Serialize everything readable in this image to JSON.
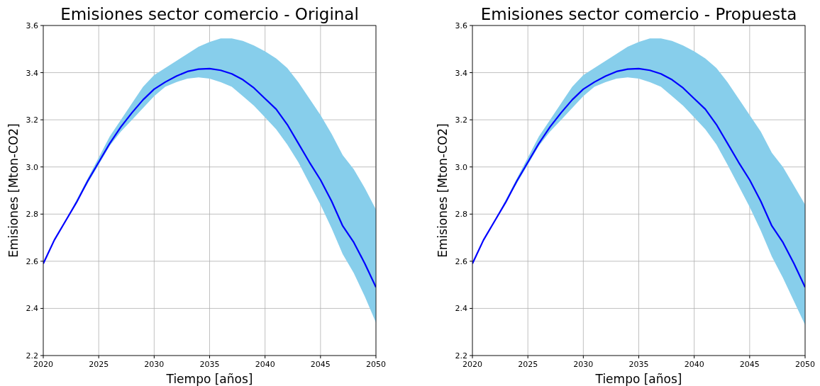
{
  "chart_data": [
    {
      "type": "line",
      "title": "Emisiones sector comercio - Original",
      "xlabel": "Tiempo [años]",
      "ylabel": "Emisiones [Mton-CO2]",
      "xlim": [
        2020,
        2050
      ],
      "xticks": [
        2020,
        2025,
        2030,
        2035,
        2040,
        2045,
        2050
      ],
      "ylim": [
        2.2,
        3.6
      ],
      "yticks": [
        2.2,
        2.4,
        2.6,
        2.8,
        {
          "value": 3,
          "label": "3.0"
        },
        3.2,
        3.4,
        3.6
      ],
      "grid": true,
      "x": [
        2020,
        2021,
        2022,
        2023,
        2024,
        2025,
        2026,
        2027,
        2028,
        2029,
        2030,
        2031,
        2032,
        2033,
        2034,
        2035,
        2036,
        2037,
        2038,
        2039,
        2040,
        2041,
        2042,
        2043,
        2044,
        2045,
        2046,
        2047,
        2048,
        2049,
        2050
      ],
      "series": [
        {
          "color": "#0000ff",
          "values": [
            2.59,
            2.69,
            2.77,
            2.85,
            2.94,
            3.02,
            3.1,
            3.17,
            3.23,
            3.285,
            3.33,
            3.36,
            3.385,
            3.405,
            3.415,
            3.417,
            3.41,
            3.395,
            3.37,
            3.335,
            3.29,
            3.245,
            3.18,
            3.1,
            3.02,
            2.945,
            2.855,
            2.75,
            2.68,
            2.59,
            2.49
          ],
          "lower": [
            2.59,
            2.69,
            2.77,
            2.85,
            2.93,
            3.01,
            3.09,
            3.15,
            3.2,
            3.25,
            3.3,
            3.34,
            3.36,
            3.375,
            3.38,
            3.375,
            3.36,
            3.34,
            3.3,
            3.26,
            3.21,
            3.16,
            3.095,
            3.02,
            2.93,
            2.84,
            2.74,
            2.63,
            2.55,
            2.45,
            2.34
          ],
          "upper": [
            2.59,
            2.69,
            2.77,
            2.86,
            2.95,
            3.04,
            3.13,
            3.2,
            3.27,
            3.34,
            3.39,
            3.42,
            3.45,
            3.48,
            3.51,
            3.53,
            3.545,
            3.545,
            3.535,
            3.515,
            3.49,
            3.46,
            3.42,
            3.36,
            3.29,
            3.22,
            3.14,
            3.05,
            2.99,
            2.91,
            2.82
          ]
        }
      ]
    },
    {
      "type": "line",
      "title": "Emisiones sector comercio - Propuesta",
      "xlabel": "Tiempo [años]",
      "ylabel": "Emisiones [Mton-CO2]",
      "xlim": [
        2020,
        2050
      ],
      "xticks": [
        2020,
        2025,
        2030,
        2035,
        2040,
        2045,
        2050
      ],
      "ylim": [
        2.2,
        3.6
      ],
      "yticks": [
        2.2,
        2.4,
        2.6,
        2.8,
        {
          "value": 3,
          "label": "3.0"
        },
        3.2,
        3.4,
        3.6
      ],
      "grid": true,
      "x": [
        2020,
        2021,
        2022,
        2023,
        2024,
        2025,
        2026,
        2027,
        2028,
        2029,
        2030,
        2031,
        2032,
        2033,
        2034,
        2035,
        2036,
        2037,
        2038,
        2039,
        2040,
        2041,
        2042,
        2043,
        2044,
        2045,
        2046,
        2047,
        2048,
        2049,
        2050
      ],
      "series": [
        {
          "color": "#0000ff",
          "values": [
            2.59,
            2.69,
            2.77,
            2.85,
            2.94,
            3.02,
            3.1,
            3.17,
            3.23,
            3.285,
            3.33,
            3.36,
            3.385,
            3.405,
            3.415,
            3.417,
            3.41,
            3.395,
            3.37,
            3.335,
            3.29,
            3.245,
            3.18,
            3.1,
            3.02,
            2.945,
            2.855,
            2.75,
            2.68,
            2.59,
            2.49
          ],
          "lower": [
            2.59,
            2.69,
            2.77,
            2.85,
            2.93,
            3.01,
            3.09,
            3.15,
            3.2,
            3.25,
            3.3,
            3.34,
            3.36,
            3.375,
            3.38,
            3.375,
            3.36,
            3.34,
            3.3,
            3.26,
            3.21,
            3.16,
            3.095,
            3.01,
            2.92,
            2.83,
            2.73,
            2.62,
            2.53,
            2.43,
            2.33
          ],
          "upper": [
            2.59,
            2.69,
            2.77,
            2.86,
            2.95,
            3.04,
            3.13,
            3.2,
            3.27,
            3.34,
            3.39,
            3.42,
            3.45,
            3.48,
            3.51,
            3.53,
            3.545,
            3.545,
            3.535,
            3.515,
            3.49,
            3.46,
            3.42,
            3.36,
            3.29,
            3.22,
            3.15,
            3.06,
            3.0,
            2.92,
            2.84
          ]
        }
      ]
    }
  ]
}
